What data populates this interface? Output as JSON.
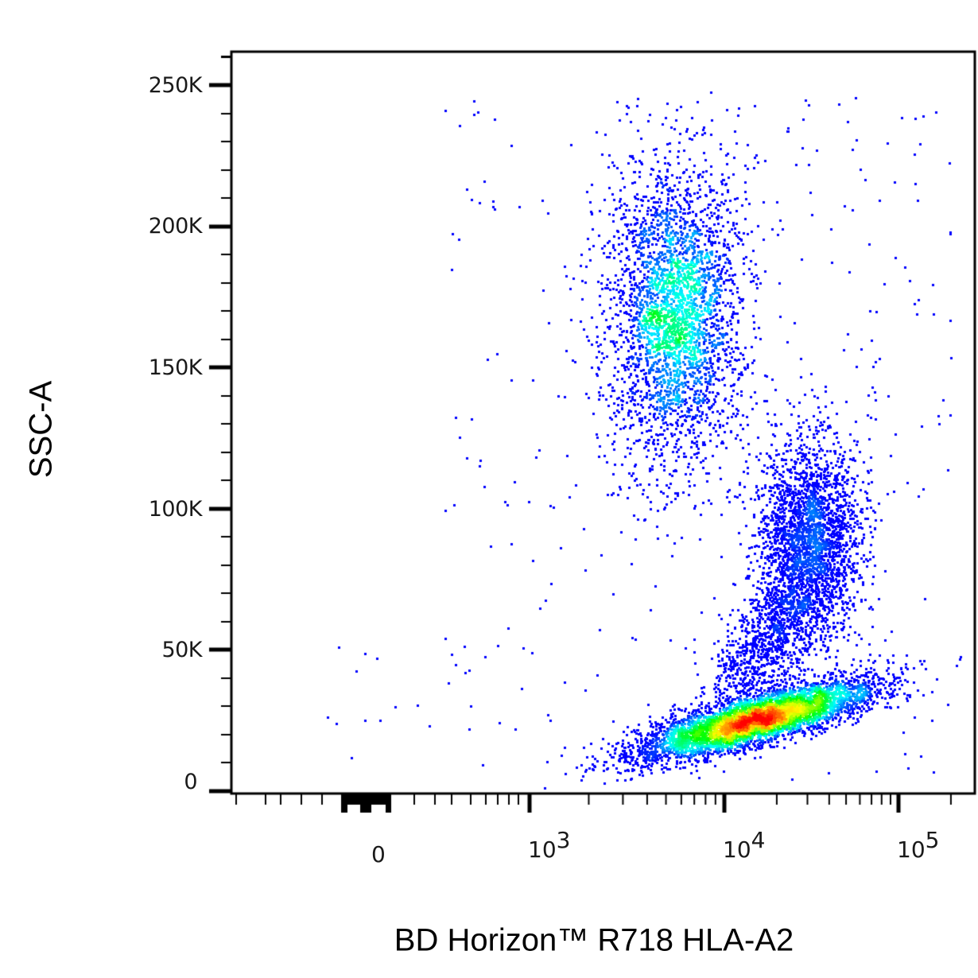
{
  "chart_data": {
    "type": "scatter",
    "subtype": "flow-cytometry-density-dot-plot",
    "title": "",
    "xlabel": "BD Horizon™ R718 HLA-A2",
    "ylabel": "SSC-A",
    "x_scale": "biexponential (logicle)",
    "y_scale": "linear",
    "xlim": [
      "~ -200",
      "~ 150000"
    ],
    "ylim": [
      0,
      262000
    ],
    "grid": false,
    "legend": null,
    "color_map": "density (blue → cyan → green → yellow → red)",
    "y_ticks": [
      {
        "label": "0",
        "value": 0
      },
      {
        "label": "50K",
        "value": 50000
      },
      {
        "label": "100K",
        "value": 100000
      },
      {
        "label": "150K",
        "value": 150000
      },
      {
        "label": "200K",
        "value": 200000
      },
      {
        "label": "250K",
        "value": 250000
      }
    ],
    "x_ticks": [
      {
        "base": "0",
        "exp": "",
        "value": 0
      },
      {
        "base": "10",
        "exp": "3",
        "value": 1000
      },
      {
        "base": "10",
        "exp": "4",
        "value": 10000
      },
      {
        "base": "10",
        "exp": "5",
        "value": 100000
      }
    ],
    "populations": [
      {
        "name": "upper population (high SSC)",
        "x_center": 4500,
        "y_center": 165000,
        "x_range": [
          1500,
          20000
        ],
        "y_range": [
          100000,
          250000
        ],
        "peak_density": "red",
        "n": 9000
      },
      {
        "name": "middle population",
        "x_center": 30000,
        "y_center": 88000,
        "x_range": [
          12000,
          70000
        ],
        "y_range": [
          50000,
          130000
        ],
        "peak_density": "green",
        "n": 2600
      },
      {
        "name": "lower population (low SSC)",
        "x_center": 12000,
        "y_center": 22000,
        "x_range": [
          2000,
          80000
        ],
        "y_range": [
          10000,
          45000
        ],
        "peak_density": "red",
        "n": 7000
      },
      {
        "name": "sparse events near zero",
        "x_center": 0,
        "y_center": 25000,
        "n": 25
      }
    ]
  },
  "axes": {
    "y_title": "SSC-A",
    "x_title": "BD Horizon™ R718 HLA-A2"
  },
  "colors": {
    "low": "#0000ff",
    "mid_low": "#00ffff",
    "mid": "#00ff00",
    "mid_high": "#ffff00",
    "high": "#ff0000",
    "axis": "#000000",
    "background": "#ffffff"
  }
}
